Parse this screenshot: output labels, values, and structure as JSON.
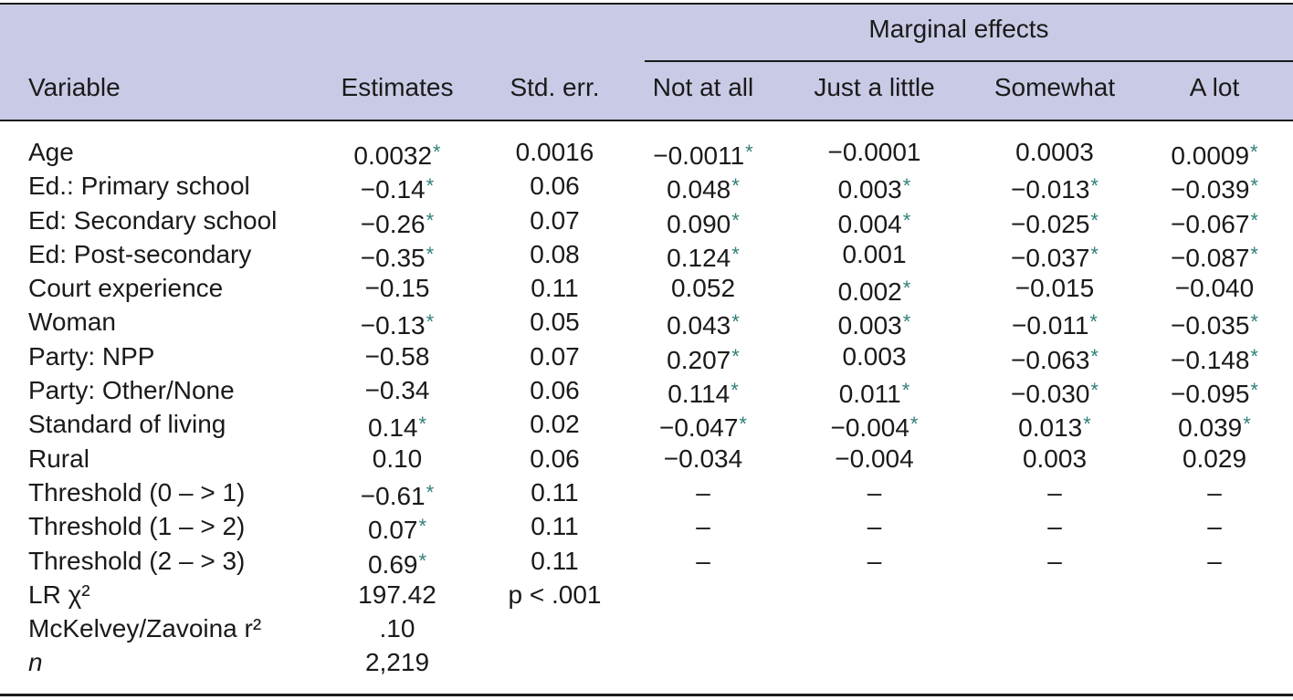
{
  "table": {
    "span_header": "Marginal effects",
    "columns": [
      "Variable",
      "Estimates",
      "Std. err.",
      "Not at all",
      "Just a little",
      "Somewhat",
      "A lot"
    ],
    "star_symbol": "*",
    "rows": [
      {
        "name": "age",
        "cells": [
          {
            "t": "Age"
          },
          {
            "t": "0.0032",
            "s": true
          },
          {
            "t": "0.0016"
          },
          {
            "t": "−0.0011",
            "s": true
          },
          {
            "t": "−0.0001"
          },
          {
            "t": "0.0003"
          },
          {
            "t": "0.0009",
            "s": true
          }
        ]
      },
      {
        "name": "ed-primary",
        "cells": [
          {
            "t": "Ed.: Primary school"
          },
          {
            "t": "−0.14",
            "s": true
          },
          {
            "t": "0.06"
          },
          {
            "t": "0.048",
            "s": true
          },
          {
            "t": "0.003",
            "s": true
          },
          {
            "t": "−0.013",
            "s": true
          },
          {
            "t": "−0.039",
            "s": true
          }
        ]
      },
      {
        "name": "ed-secondary",
        "cells": [
          {
            "t": "Ed: Secondary school"
          },
          {
            "t": "−0.26",
            "s": true
          },
          {
            "t": "0.07"
          },
          {
            "t": "0.090",
            "s": true
          },
          {
            "t": "0.004",
            "s": true
          },
          {
            "t": "−0.025",
            "s": true
          },
          {
            "t": "−0.067",
            "s": true
          }
        ]
      },
      {
        "name": "ed-post-secondary",
        "cells": [
          {
            "t": "Ed: Post-secondary"
          },
          {
            "t": "−0.35",
            "s": true
          },
          {
            "t": "0.08"
          },
          {
            "t": "0.124",
            "s": true
          },
          {
            "t": "0.001"
          },
          {
            "t": "−0.037",
            "s": true
          },
          {
            "t": "−0.087",
            "s": true
          }
        ]
      },
      {
        "name": "court-experience",
        "cells": [
          {
            "t": "Court experience"
          },
          {
            "t": "−0.15"
          },
          {
            "t": "0.11"
          },
          {
            "t": "0.052"
          },
          {
            "t": "0.002",
            "s": true
          },
          {
            "t": "−0.015"
          },
          {
            "t": "−0.040"
          }
        ]
      },
      {
        "name": "woman",
        "cells": [
          {
            "t": "Woman"
          },
          {
            "t": "−0.13",
            "s": true
          },
          {
            "t": "0.05"
          },
          {
            "t": "0.043",
            "s": true
          },
          {
            "t": "0.003",
            "s": true
          },
          {
            "t": "−0.011",
            "s": true
          },
          {
            "t": "−0.035",
            "s": true
          }
        ]
      },
      {
        "name": "party-npp",
        "cells": [
          {
            "t": "Party: NPP"
          },
          {
            "t": "−0.58"
          },
          {
            "t": "0.07"
          },
          {
            "t": "0.207",
            "s": true
          },
          {
            "t": "0.003"
          },
          {
            "t": "−0.063",
            "s": true
          },
          {
            "t": "−0.148",
            "s": true
          }
        ]
      },
      {
        "name": "party-other-none",
        "cells": [
          {
            "t": "Party: Other/None"
          },
          {
            "t": "−0.34"
          },
          {
            "t": "0.06"
          },
          {
            "t": "0.114",
            "s": true
          },
          {
            "t": "0.011",
            "s": true
          },
          {
            "t": "−0.030",
            "s": true
          },
          {
            "t": "−0.095",
            "s": true
          }
        ]
      },
      {
        "name": "standard-of-living",
        "cells": [
          {
            "t": "Standard of living"
          },
          {
            "t": "0.14",
            "s": true
          },
          {
            "t": "0.02"
          },
          {
            "t": "−0.047",
            "s": true
          },
          {
            "t": "−0.004",
            "s": true
          },
          {
            "t": "0.013",
            "s": true
          },
          {
            "t": "0.039",
            "s": true
          }
        ]
      },
      {
        "name": "rural",
        "cells": [
          {
            "t": "Rural"
          },
          {
            "t": "0.10"
          },
          {
            "t": "0.06"
          },
          {
            "t": "−0.034"
          },
          {
            "t": "−0.004"
          },
          {
            "t": "0.003"
          },
          {
            "t": "0.029"
          }
        ]
      },
      {
        "name": "threshold-0-1",
        "cells": [
          {
            "t": "Threshold (0 – > 1)"
          },
          {
            "t": "−0.61",
            "s": true
          },
          {
            "t": "0.11"
          },
          {
            "t": "–"
          },
          {
            "t": "–"
          },
          {
            "t": "–"
          },
          {
            "t": "–"
          }
        ]
      },
      {
        "name": "threshold-1-2",
        "cells": [
          {
            "t": "Threshold (1 – > 2)"
          },
          {
            "t": "0.07",
            "s": true
          },
          {
            "t": "0.11"
          },
          {
            "t": "–"
          },
          {
            "t": "–"
          },
          {
            "t": "–"
          },
          {
            "t": "–"
          }
        ]
      },
      {
        "name": "threshold-2-3",
        "cells": [
          {
            "t": "Threshold (2 – > 3)"
          },
          {
            "t": "0.69",
            "s": true
          },
          {
            "t": "0.11"
          },
          {
            "t": "–"
          },
          {
            "t": "–"
          },
          {
            "t": "–"
          },
          {
            "t": "–"
          }
        ]
      },
      {
        "name": "lr-chi2",
        "cells": [
          {
            "t": "LR χ²"
          },
          {
            "t": "197.42"
          },
          {
            "t": "p < .001"
          }
        ]
      },
      {
        "name": "mckelvey-zavoina",
        "cells": [
          {
            "t": "McKelvey/Zavoina r²"
          },
          {
            "t": ".10"
          }
        ]
      },
      {
        "name": "n",
        "cells": [
          {
            "t": "n",
            "i": true
          },
          {
            "t": "2,219"
          }
        ]
      }
    ]
  }
}
